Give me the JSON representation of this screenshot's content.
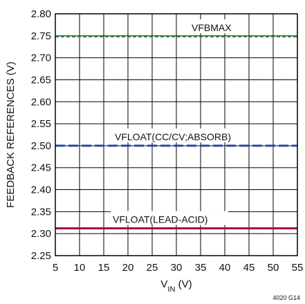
{
  "chart_data": {
    "type": "line",
    "xlabel_main": "V",
    "xlabel_sub": "IN",
    "xlabel_unit": " (V)",
    "ylabel": "FEEDBACK REFERENCES (V)",
    "xlim": [
      5,
      55
    ],
    "ylim": [
      2.25,
      2.8
    ],
    "x_ticks": [
      "5",
      "10",
      "15",
      "20",
      "25",
      "30",
      "35",
      "40",
      "45",
      "50",
      "55"
    ],
    "y_ticks": [
      "2.25",
      "2.30",
      "2.35",
      "2.40",
      "2.45",
      "2.50",
      "2.55",
      "2.60",
      "2.65",
      "2.70",
      "2.75",
      "2.80"
    ],
    "grid": true,
    "series": [
      {
        "name": "VFBMAX",
        "x": [
          5,
          55
        ],
        "values": [
          2.748,
          2.748
        ],
        "color": "#2e8b3a",
        "style": "dashed"
      },
      {
        "name": "VFLOAT(CC/CV;ABSORB)",
        "x": [
          5,
          55
        ],
        "values": [
          2.5,
          2.5
        ],
        "color": "#2747a8",
        "style": "dashed"
      },
      {
        "name": "VFLOAT(LEAD-ACID)",
        "x": [
          5,
          55
        ],
        "values": [
          2.312,
          2.312
        ],
        "color": "#a0103a",
        "style": "solid"
      }
    ],
    "figure_id": "4020 G14"
  }
}
